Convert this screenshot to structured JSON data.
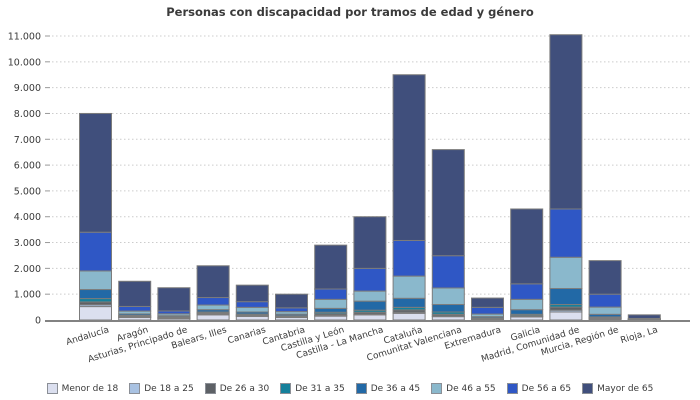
{
  "chart_data": {
    "type": "bar",
    "stacked": true,
    "title": "Personas con discapacidad por tramos de edad y género",
    "xlabel": "",
    "ylabel": "",
    "ylim": [
      0,
      11000
    ],
    "ytick_step": 1000,
    "grid": "horizontal-dotted",
    "legend_position": "bottom",
    "number_format": "thousands-dot",
    "categories": [
      "Andalucía",
      "Aragón",
      "Asturias, Principado de",
      "Balears, Illes",
      "Canarias",
      "Cantabria",
      "Castilla y León",
      "Castilla - La Mancha",
      "Cataluña",
      "Comunitat Valenciana",
      "Extremadura",
      "Galicia",
      "Madrid, Comunidad de",
      "Murcia, Región de",
      "Rioja, La"
    ],
    "series": [
      {
        "name": "Menor de 18",
        "color": "#dbdfef",
        "values": [
          520,
          100,
          60,
          200,
          140,
          100,
          150,
          200,
          260,
          130,
          25,
          120,
          310,
          40,
          6
        ]
      },
      {
        "name": "De 18 a 25",
        "color": "#a9c2e2",
        "values": [
          70,
          15,
          15,
          40,
          20,
          15,
          30,
          30,
          40,
          30,
          10,
          20,
          70,
          20,
          4
        ]
      },
      {
        "name": "De 26 a 30",
        "color": "#5d6166",
        "values": [
          110,
          25,
          20,
          30,
          30,
          20,
          60,
          70,
          90,
          60,
          20,
          30,
          120,
          30,
          5
        ]
      },
      {
        "name": "De 31 a 35",
        "color": "#15809b",
        "values": [
          130,
          35,
          25,
          40,
          40,
          30,
          60,
          80,
          100,
          90,
          25,
          50,
          100,
          30,
          5
        ]
      },
      {
        "name": "De 36 a 45",
        "color": "#2269a6",
        "values": [
          350,
          60,
          45,
          90,
          80,
          60,
          150,
          350,
          350,
          290,
          50,
          180,
          620,
          100,
          10
        ]
      },
      {
        "name": "De 46 a 55",
        "color": "#8ab8cc",
        "values": [
          720,
          110,
          75,
          180,
          180,
          100,
          350,
          390,
          860,
          640,
          100,
          400,
          1210,
          280,
          10
        ]
      },
      {
        "name": "De 56 a 65",
        "color": "#2f57c5",
        "values": [
          1500,
          180,
          110,
          290,
          220,
          145,
          400,
          880,
          1380,
          1250,
          260,
          600,
          1870,
          500,
          20
        ]
      },
      {
        "name": "Mayor de 65",
        "color": "#404f7c",
        "values": [
          4600,
          975,
          900,
          1230,
          640,
          530,
          1700,
          2000,
          6420,
          4110,
          360,
          2900,
          6750,
          1300,
          140
        ]
      }
    ],
    "totals": [
      8000,
      1500,
      1250,
      2100,
      1350,
      1000,
      2900,
      4000,
      9500,
      6600,
      850,
      4300,
      11050,
      2300,
      200
    ]
  },
  "styles": {
    "title_color": "#3b3b3b",
    "grid_color": "#cccccc",
    "axis_color": "#828282",
    "tick_color": "#999999",
    "bar_border_color": "#7c7c7c",
    "label_color": "#3a3a3a"
  }
}
